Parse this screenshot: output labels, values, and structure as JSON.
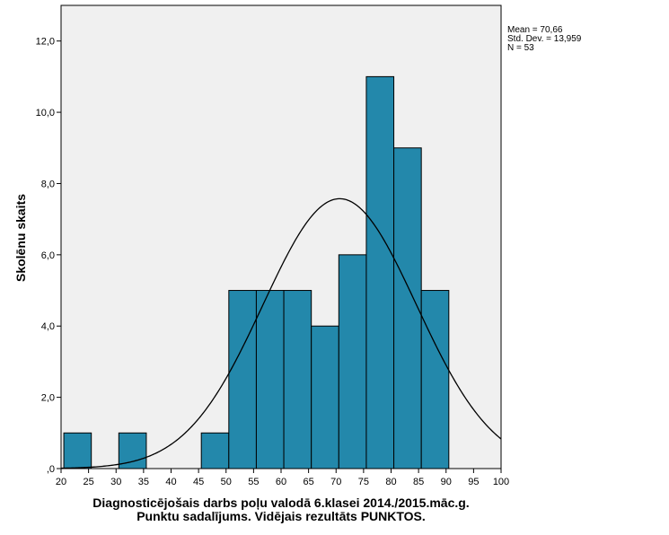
{
  "chart_data": {
    "type": "bar",
    "subtype": "histogram",
    "xlabel_line1": "Diagnosticējošais darbs poļu valodā 6.klasei 2014./2015.māc.g.",
    "xlabel_line2": "Punktu sadalījums. Vidējais rezultāts PUNKTOS.",
    "ylabel": "Skolēnu skaits",
    "xlim": [
      20,
      100
    ],
    "ylim": [
      0,
      13.0
    ],
    "x_ticks": [
      20,
      25,
      30,
      35,
      40,
      45,
      50,
      55,
      60,
      65,
      70,
      75,
      80,
      85,
      90,
      95,
      100
    ],
    "x_tick_labels": [
      "20",
      "25",
      "30",
      "35",
      "40",
      "45",
      "50",
      "55",
      "60",
      "65",
      "70",
      "75",
      "80",
      "85",
      "90",
      "95",
      "100"
    ],
    "y_ticks": [
      0,
      2,
      4,
      6,
      8,
      10,
      12
    ],
    "y_tick_labels": [
      ",0",
      "2,0",
      "4,0",
      "6,0",
      "8,0",
      "10,0",
      "12,0"
    ],
    "bins": [
      {
        "start": 20.5,
        "end": 25.5,
        "count": 1
      },
      {
        "start": 30.5,
        "end": 35.5,
        "count": 1
      },
      {
        "start": 45.5,
        "end": 50.5,
        "count": 1
      },
      {
        "start": 50.5,
        "end": 55.5,
        "count": 5
      },
      {
        "start": 55.5,
        "end": 60.5,
        "count": 5
      },
      {
        "start": 60.5,
        "end": 65.5,
        "count": 5
      },
      {
        "start": 65.5,
        "end": 70.5,
        "count": 4
      },
      {
        "start": 70.5,
        "end": 75.5,
        "count": 6
      },
      {
        "start": 75.5,
        "end": 80.5,
        "count": 11
      },
      {
        "start": 80.5,
        "end": 85.5,
        "count": 9
      },
      {
        "start": 85.5,
        "end": 90.5,
        "count": 5
      }
    ],
    "normal_curve": {
      "mean": 70.66,
      "sd": 13.959,
      "n": 53,
      "bin_width": 5
    },
    "stats_text": {
      "mean": "Mean = 70,66",
      "sd": "Std. Dev. = 13,959",
      "n": "N = 53"
    },
    "colors": {
      "bar": "#2388ab",
      "plot_bg": "#f0f0f0",
      "curve": "#000000"
    }
  }
}
